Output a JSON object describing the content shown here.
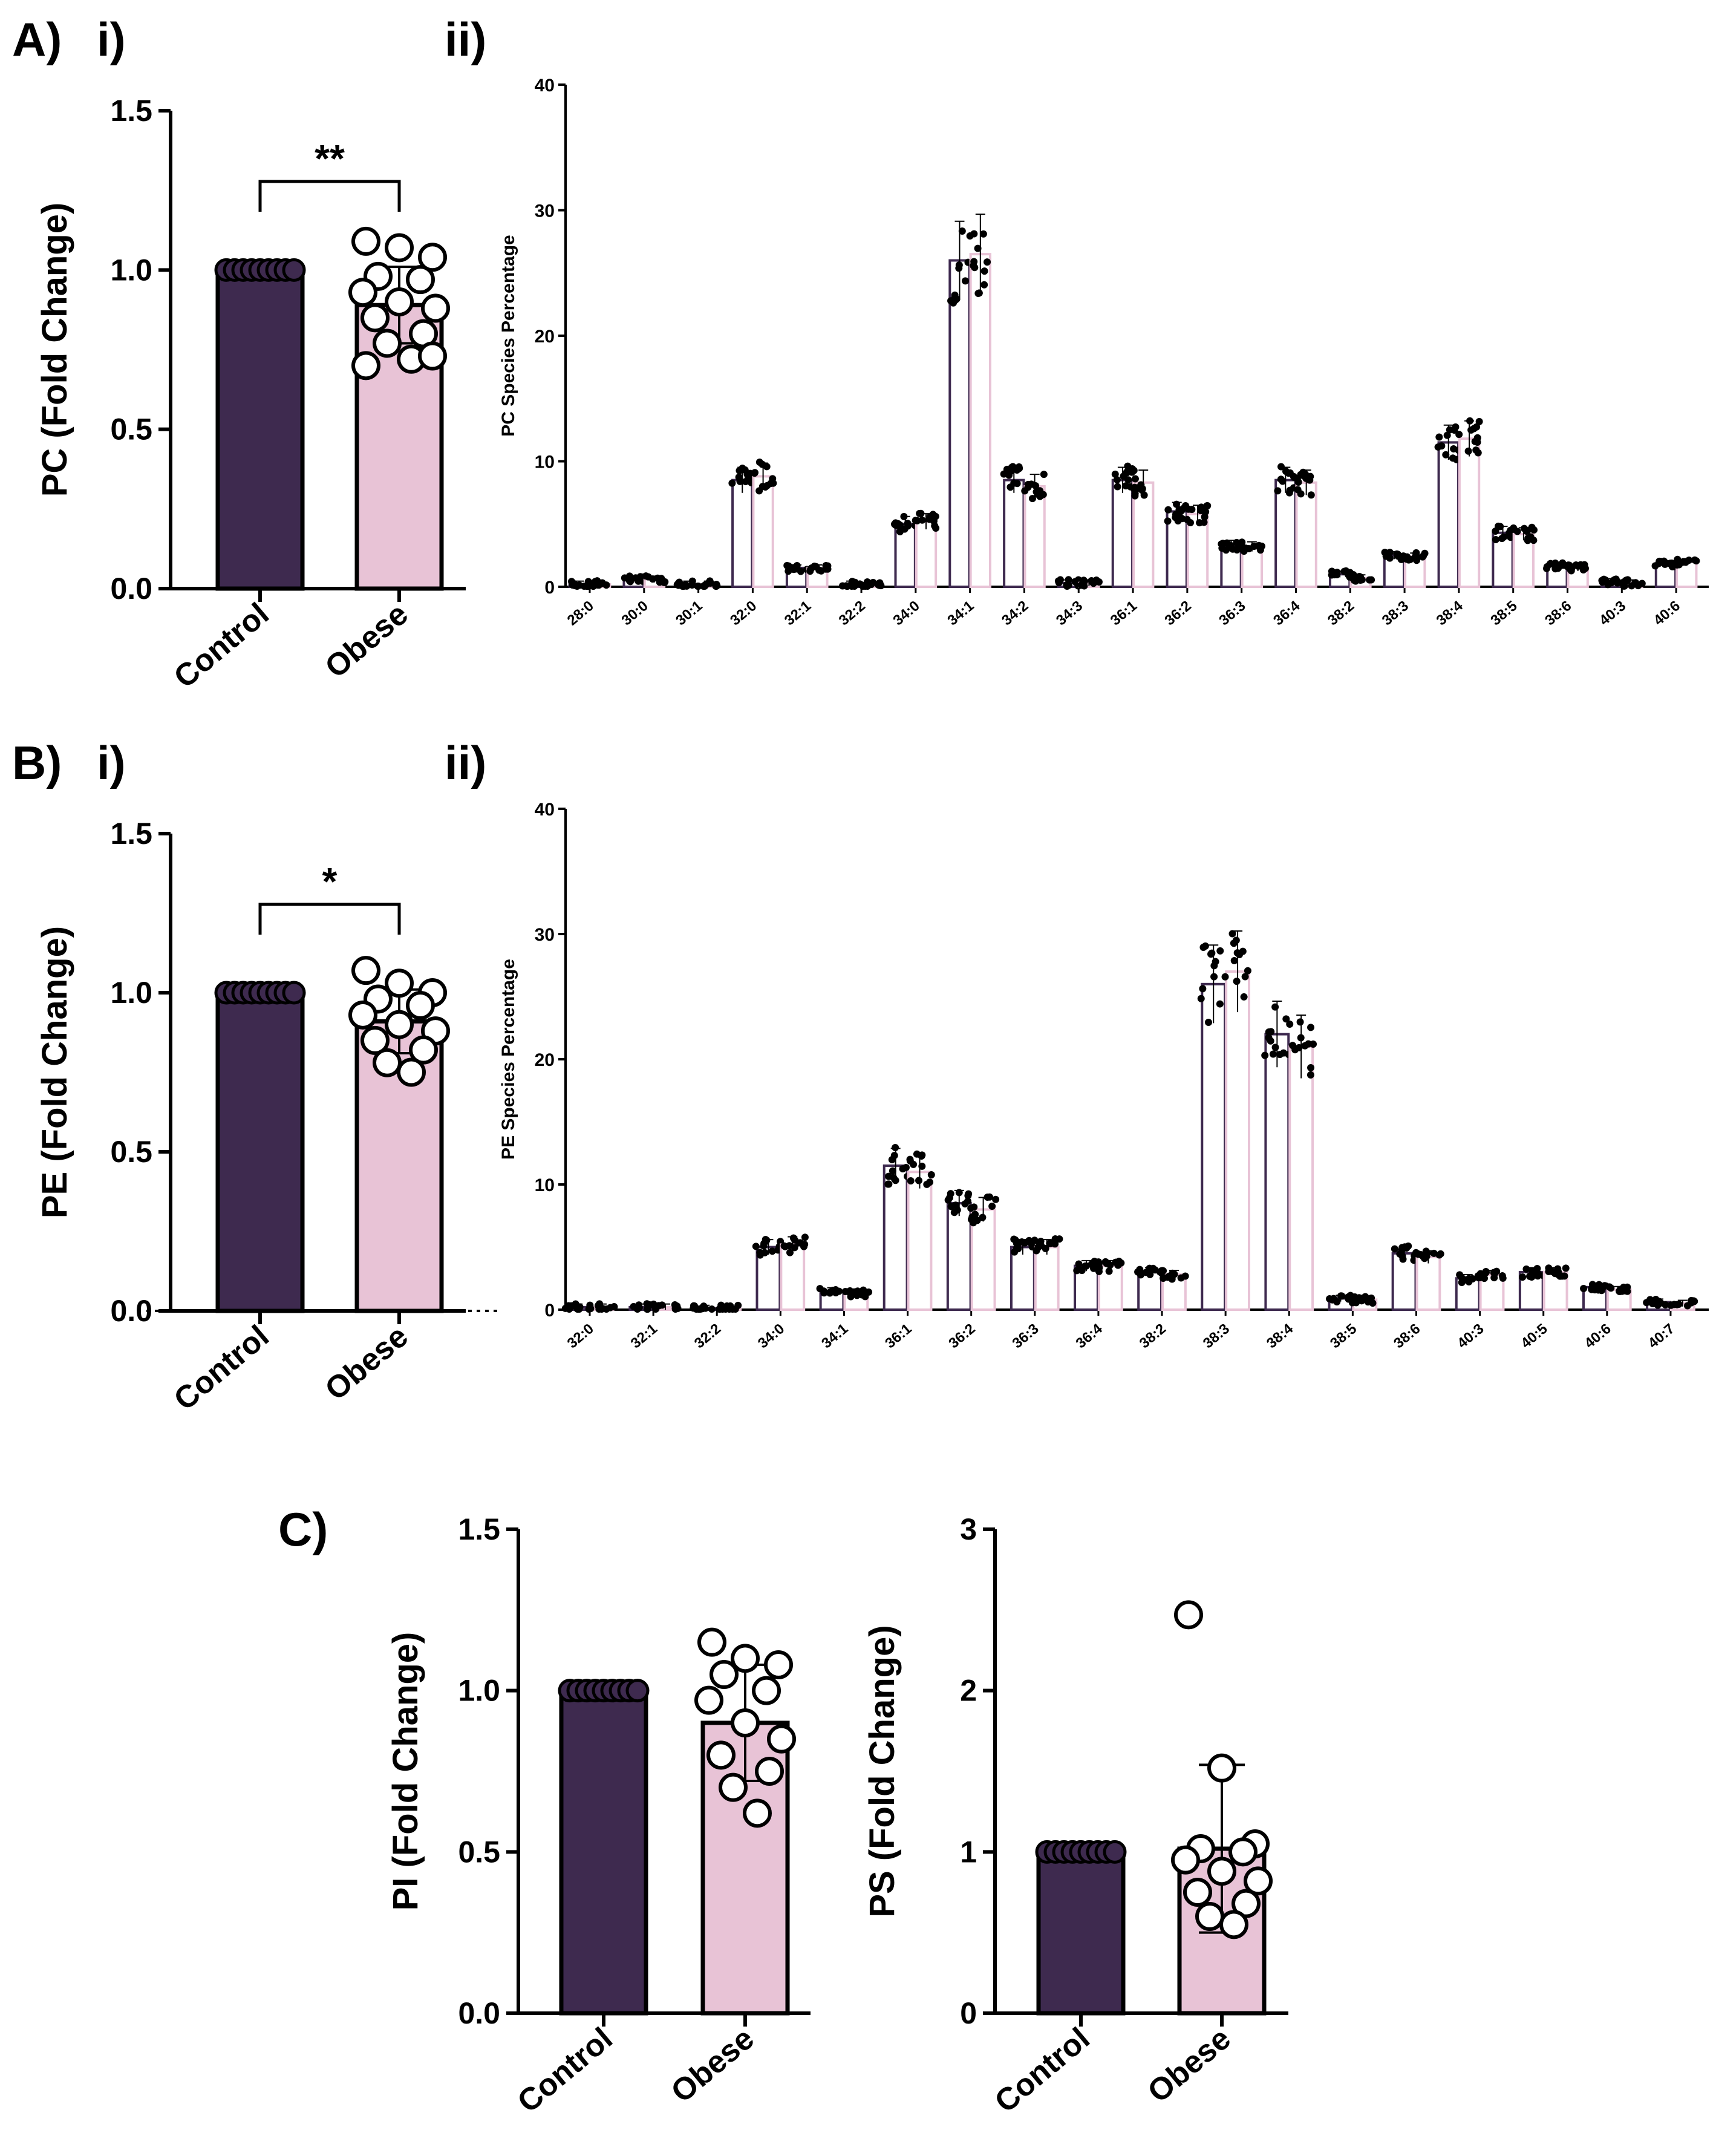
{
  "colors": {
    "control": "#3e2a4f",
    "obese": "#e8c3d6",
    "axis": "#000000"
  },
  "labels": {
    "A": "A)",
    "B": "B)",
    "C": "C)",
    "i": "i)",
    "ii": "ii)"
  },
  "chart_data": [
    {
      "id": "pc_fold",
      "type": "bar",
      "categories": [
        "Control",
        "Obese"
      ],
      "values": [
        1.0,
        0.89
      ],
      "error": [
        0.0,
        0.12
      ],
      "ylabel": "PC (Fold Change)",
      "ylim": [
        0,
        1.5
      ],
      "yticks": [
        0.0,
        0.5,
        1.0,
        1.5
      ],
      "ytick_labels": [
        "0.0",
        "0.5",
        "1.0",
        "1.5"
      ],
      "significance": "**",
      "points_obese": [
        1.09,
        1.07,
        1.04,
        0.98,
        0.97,
        0.93,
        0.9,
        0.88,
        0.85,
        0.8,
        0.77,
        0.72,
        0.7,
        0.73
      ]
    },
    {
      "id": "pc_species",
      "type": "bar",
      "categories": [
        "28:0",
        "30:0",
        "30:1",
        "32:0",
        "32:1",
        "32:2",
        "34:0",
        "34:1",
        "34:2",
        "34:3",
        "36:1",
        "36:2",
        "36:3",
        "36:4",
        "38:2",
        "38:3",
        "38:4",
        "38:5",
        "38:6",
        "40:3",
        "40:6"
      ],
      "series": [
        {
          "values": [
            0.2,
            0.6,
            0.2,
            8.5,
            1.5,
            0.2,
            5.0,
            26.0,
            8.5,
            0.3,
            8.5,
            6.0,
            3.3,
            8.5,
            1.0,
            2.5,
            11.5,
            4.3,
            1.7,
            0.4,
            1.8
          ]
        },
        {
          "values": [
            0.2,
            0.6,
            0.2,
            8.8,
            1.5,
            0.2,
            5.2,
            26.5,
            8.0,
            0.3,
            8.3,
            5.8,
            3.2,
            8.3,
            0.7,
            2.4,
            11.8,
            4.2,
            1.5,
            0.3,
            2.0
          ]
        }
      ],
      "ylabel": "PC Species Percentage",
      "ylim": [
        0,
        40
      ],
      "yticks": [
        0,
        10,
        20,
        30,
        40
      ],
      "ytick_labels": [
        "0",
        "10",
        "20",
        "30",
        "40"
      ]
    },
    {
      "id": "pe_fold",
      "type": "bar",
      "categories": [
        "Control",
        "Obese"
      ],
      "values": [
        1.0,
        0.91
      ],
      "error": [
        0.0,
        0.1
      ],
      "ylabel": "PE (Fold Change)",
      "ylim": [
        0,
        1.5
      ],
      "yticks": [
        0.0,
        0.5,
        1.0,
        1.5
      ],
      "ytick_labels": [
        "0.0",
        "0.5",
        "1.0",
        "1.5"
      ],
      "significance": "*",
      "points_obese": [
        1.07,
        1.03,
        1.0,
        0.98,
        0.96,
        0.93,
        0.9,
        0.88,
        0.85,
        0.82,
        0.78,
        0.75
      ]
    },
    {
      "id": "pe_species",
      "type": "bar",
      "categories": [
        "32:0",
        "32:1",
        "32:2",
        "34:0",
        "34:1",
        "36:1",
        "36:2",
        "36:3",
        "36:4",
        "38:2",
        "38:3",
        "38:4",
        "38:5",
        "38:6",
        "40:3",
        "40:5",
        "40:6",
        "40:7"
      ],
      "series": [
        {
          "values": [
            0.2,
            0.2,
            0.1,
            5.0,
            1.5,
            11.5,
            8.5,
            5.0,
            3.5,
            3.0,
            26.0,
            22.0,
            0.9,
            4.5,
            2.5,
            3.0,
            1.8,
            0.6
          ]
        },
        {
          "values": [
            0.2,
            0.2,
            0.1,
            5.2,
            1.3,
            11.0,
            8.0,
            5.0,
            3.5,
            2.8,
            27.0,
            21.0,
            0.8,
            4.2,
            2.8,
            3.0,
            1.6,
            0.5
          ]
        }
      ],
      "ylabel": "PE Species Percentage",
      "ylim": [
        0,
        40
      ],
      "yticks": [
        0,
        10,
        20,
        30,
        40
      ],
      "ytick_labels": [
        "0",
        "10",
        "20",
        "30",
        "40"
      ]
    },
    {
      "id": "pi_fold",
      "type": "bar",
      "categories": [
        "Control",
        "Obese"
      ],
      "values": [
        1.0,
        0.9
      ],
      "error": [
        0.0,
        0.18
      ],
      "ylabel": "PI (Fold Change)",
      "ylim": [
        0,
        1.5
      ],
      "yticks": [
        0.0,
        0.5,
        1.0,
        1.5
      ],
      "ytick_labels": [
        "0.0",
        "0.5",
        "1.0",
        "1.5"
      ],
      "points_obese": [
        1.15,
        1.1,
        1.08,
        1.05,
        1.0,
        0.97,
        0.9,
        0.85,
        0.8,
        0.75,
        0.7,
        0.62
      ]
    },
    {
      "id": "ps_fold",
      "type": "bar",
      "categories": [
        "Control",
        "Obese"
      ],
      "values": [
        1.0,
        1.02
      ],
      "error": [
        0.0,
        0.52
      ],
      "ylabel": "PS (Fold Change)",
      "ylim": [
        0,
        3
      ],
      "yticks": [
        0,
        1,
        2,
        3
      ],
      "ytick_labels": [
        "0",
        "1",
        "2",
        "3"
      ],
      "points_obese": [
        2.47,
        1.52,
        1.05,
        1.02,
        1.0,
        0.95,
        0.88,
        0.82,
        0.75,
        0.68,
        0.6,
        0.55
      ]
    }
  ]
}
